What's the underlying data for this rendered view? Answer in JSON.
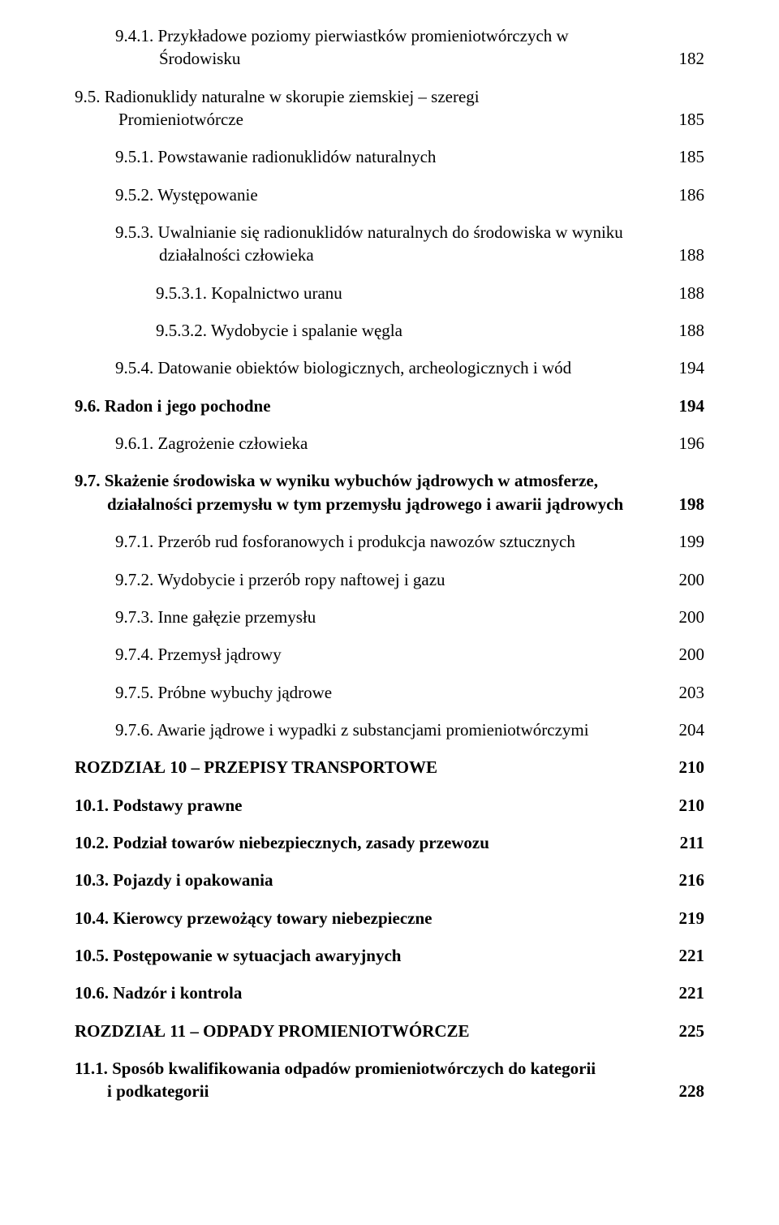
{
  "entries": [
    {
      "indent": 1,
      "bold": false,
      "text_a": "9.4.1. Przykładowe poziomy pierwiastków promieniotwórczych w",
      "text_b": "Środowisku",
      "page": "182",
      "hang": true
    },
    {
      "indent": 0,
      "bold": false,
      "text_a": "9.5. Radionuklidy naturalne w skorupie ziemskiej – szeregi",
      "text_b": "Promieniotwórcze",
      "page": "185",
      "hang": true
    },
    {
      "indent": 1,
      "bold": false,
      "text_a": "9.5.1. Powstawanie radionuklidów naturalnych",
      "page": "185"
    },
    {
      "indent": 1,
      "bold": false,
      "text_a": "9.5.2. Występowanie",
      "page": "186"
    },
    {
      "indent": 1,
      "bold": false,
      "text_a": "9.5.3. Uwalnianie się radionuklidów naturalnych do środowiska w wyniku",
      "text_b": "działalności człowieka",
      "page": "188",
      "hang": true
    },
    {
      "indent": 2,
      "bold": false,
      "text_a": "9.5.3.1. Kopalnictwo uranu",
      "page": "188"
    },
    {
      "indent": 2,
      "bold": false,
      "text_a": "9.5.3.2. Wydobycie i spalanie węgla",
      "page": "188"
    },
    {
      "indent": 1,
      "bold": false,
      "text_a": "9.5.4. Datowanie obiektów biologicznych, archeologicznych i wód",
      "page": "194"
    },
    {
      "indent": 0,
      "bold": true,
      "text_a": "9.6. Radon i jego pochodne",
      "page": "194"
    },
    {
      "indent": 1,
      "bold": false,
      "text_a": "9.6.1. Zagrożenie człowieka",
      "page": "196"
    },
    {
      "indent": 0,
      "bold": true,
      "text_a": "9.7. Skażenie środowiska w wyniku wybuchów jądrowych w atmosferze,",
      "text_b": "działalności przemysłu w tym przemysłu jądrowego i awarii jądrowych",
      "page": "198",
      "hang": false
    },
    {
      "indent": 1,
      "bold": false,
      "text_a": "9.7.1. Przerób rud fosforanowych i produkcja nawozów sztucznych",
      "page": "199"
    },
    {
      "indent": 1,
      "bold": false,
      "text_a": "9.7.2. Wydobycie i przerób ropy naftowej i gazu",
      "page": "200"
    },
    {
      "indent": 1,
      "bold": false,
      "text_a": "9.7.3. Inne gałęzie przemysłu",
      "page": "200"
    },
    {
      "indent": 1,
      "bold": false,
      "text_a": "9.7.4. Przemysł jądrowy",
      "page": "200"
    },
    {
      "indent": 1,
      "bold": false,
      "text_a": "9.7.5. Próbne wybuchy jądrowe",
      "page": "203"
    },
    {
      "indent": 1,
      "bold": false,
      "text_a": "9.7.6. Awarie jądrowe i wypadki z substancjami promieniotwórczymi",
      "page": "204"
    },
    {
      "indent": 0,
      "bold": true,
      "text_a": "ROZDZIAŁ 10 – PRZEPISY TRANSPORTOWE",
      "page": "210"
    },
    {
      "indent": 0,
      "bold": true,
      "text_a": "10.1. Podstawy prawne",
      "page": "210"
    },
    {
      "indent": 0,
      "bold": true,
      "text_a": "10.2. Podział towarów niebezpiecznych, zasady przewozu",
      "page": "211"
    },
    {
      "indent": 0,
      "bold": true,
      "text_a": "10.3. Pojazdy i opakowania",
      "page": "216"
    },
    {
      "indent": 0,
      "bold": true,
      "text_a": "10.4. Kierowcy przewożący towary niebezpieczne",
      "page": "219"
    },
    {
      "indent": 0,
      "bold": true,
      "text_a": "10.5. Postępowanie w sytuacjach awaryjnych",
      "page": "221"
    },
    {
      "indent": 0,
      "bold": true,
      "text_a": "10.6. Nadzór i kontrola",
      "page": "221"
    },
    {
      "indent": 0,
      "bold": true,
      "text_a": "ROZDZIAŁ 11 – ODPADY PROMIENIOTWÓRCZE",
      "page": "225"
    },
    {
      "indent": 0,
      "bold": true,
      "text_a": "11.1. Sposób kwalifikowania odpadów promieniotwórczych do kategorii",
      "text_b": "i podkategorii",
      "page": "228",
      "hang": false
    }
  ]
}
